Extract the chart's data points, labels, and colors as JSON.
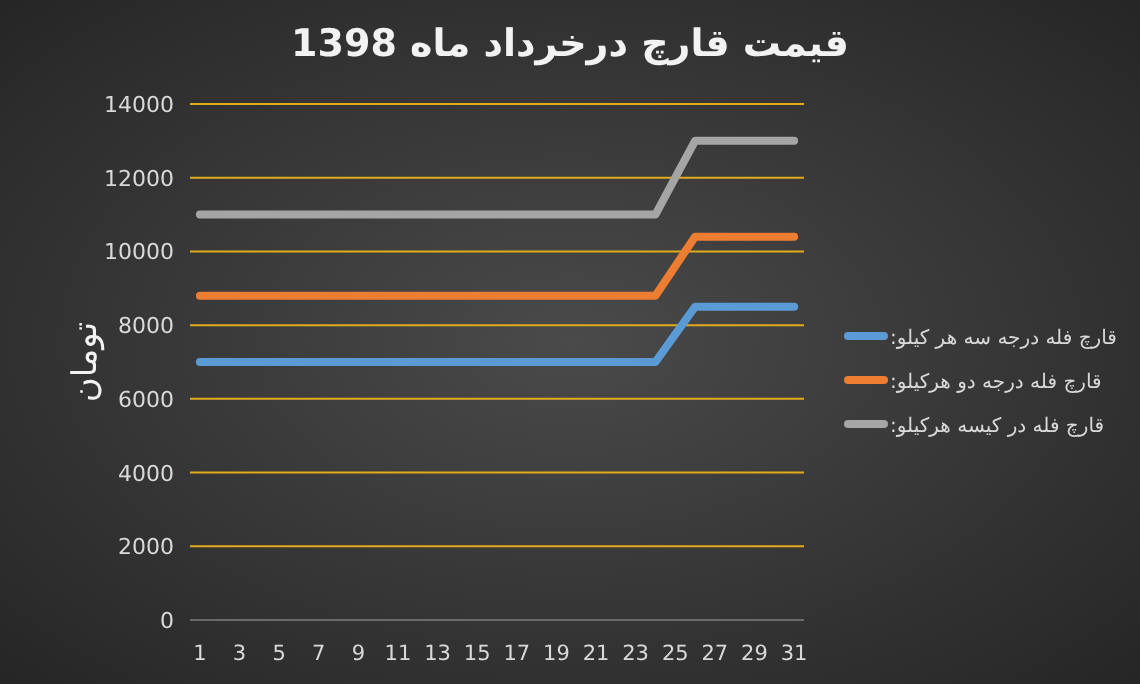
{
  "chart_data": {
    "type": "line",
    "title": "قیمت قارچ درخرداد  ماه 1398",
    "ylabel": "تومان",
    "x": [
      1,
      2,
      3,
      4,
      5,
      6,
      7,
      8,
      9,
      10,
      11,
      12,
      13,
      14,
      15,
      16,
      17,
      18,
      19,
      20,
      21,
      22,
      23,
      24,
      25,
      26,
      27,
      28,
      29,
      30,
      31
    ],
    "xlim": [
      0.5,
      31.5
    ],
    "xticks": [
      1,
      3,
      5,
      7,
      9,
      11,
      13,
      15,
      17,
      19,
      21,
      23,
      25,
      27,
      29,
      31
    ],
    "series": [
      {
        "name": "قارچ فله درجه سه هر کیلو:",
        "color": "#5b9bd5",
        "values": [
          7000,
          7000,
          7000,
          7000,
          7000,
          7000,
          7000,
          7000,
          7000,
          7000,
          7000,
          7000,
          7000,
          7000,
          7000,
          7000,
          7000,
          7000,
          7000,
          7000,
          7000,
          7000,
          7000,
          7000,
          7750,
          8500,
          8500,
          8500,
          8500,
          8500,
          8500
        ]
      },
      {
        "name": "قارچ فله درجه دو هرکیلو:",
        "color": "#ed7d31",
        "values": [
          8800,
          8800,
          8800,
          8800,
          8800,
          8800,
          8800,
          8800,
          8800,
          8800,
          8800,
          8800,
          8800,
          8800,
          8800,
          8800,
          8800,
          8800,
          8800,
          8800,
          8800,
          8800,
          8800,
          8800,
          9600,
          10400,
          10400,
          10400,
          10400,
          10400,
          10400
        ]
      },
      {
        "name": "قارچ فله در کیسه هرکیلو:",
        "color": "#a5a5a5",
        "values": [
          11000,
          11000,
          11000,
          11000,
          11000,
          11000,
          11000,
          11000,
          11000,
          11000,
          11000,
          11000,
          11000,
          11000,
          11000,
          11000,
          11000,
          11000,
          11000,
          11000,
          11000,
          11000,
          11000,
          11000,
          12000,
          13000,
          13000,
          13000,
          13000,
          13000,
          13000
        ]
      }
    ],
    "ylim": [
      0,
      14000
    ],
    "yticks": [
      0,
      2000,
      4000,
      6000,
      8000,
      10000,
      12000,
      14000
    ],
    "grid": "y",
    "legend": "right"
  }
}
